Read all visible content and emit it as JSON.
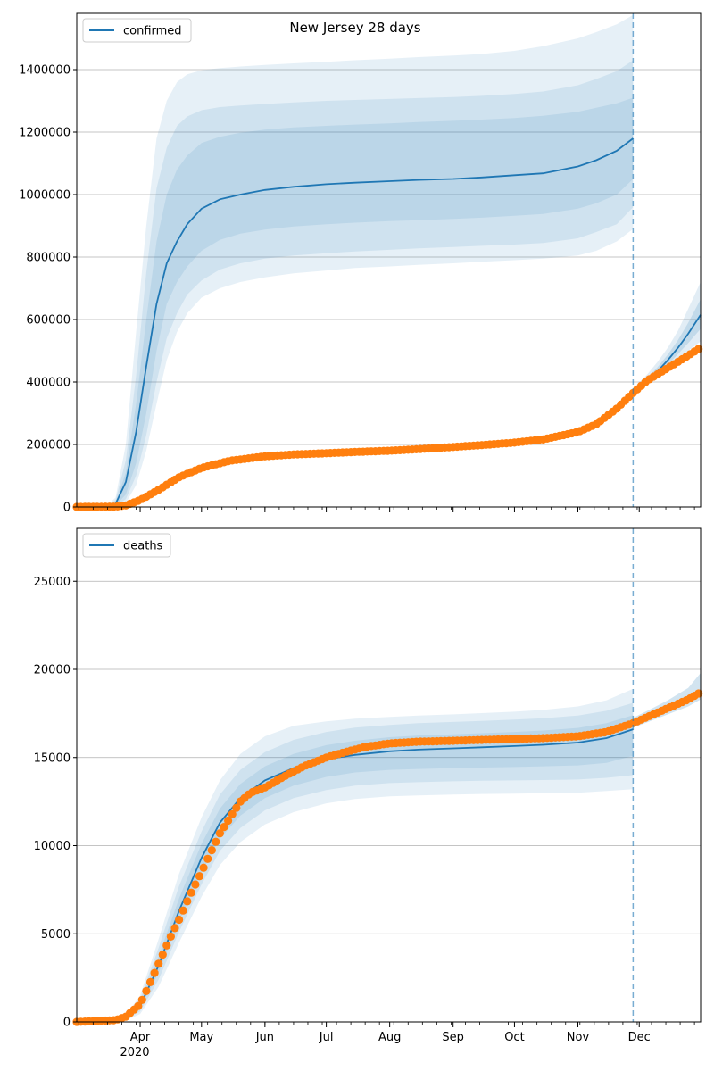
{
  "figure": {
    "title": "New Jersey 28 days",
    "x_tick_labels": [
      "Apr",
      "May",
      "Jun",
      "Jul",
      "Aug",
      "Sep",
      "Oct",
      "Nov",
      "Dec"
    ],
    "x_year_label": "2020",
    "forecast_marker_date": "2020-11-28"
  },
  "colors": {
    "model": "#1f77b4",
    "observed": "#ff7f0e",
    "band": "#1f77b4",
    "grid": "#b0b0b0"
  },
  "chart_data": [
    {
      "type": "line",
      "legend": "confirmed",
      "x_range": [
        "2020-03-01",
        "2020-12-31"
      ],
      "ylim": [
        0,
        1580000
      ],
      "y_ticks": [
        0,
        200000,
        400000,
        600000,
        800000,
        1000000,
        1200000,
        1400000
      ],
      "grid": "y",
      "legend_position": "top-left",
      "model": {
        "name": "confirmed",
        "dates": [
          "2020-03-01",
          "2020-03-15",
          "2020-03-20",
          "2020-03-25",
          "2020-03-30",
          "2020-04-04",
          "2020-04-09",
          "2020-04-14",
          "2020-04-19",
          "2020-04-24",
          "2020-05-01",
          "2020-05-10",
          "2020-05-20",
          "2020-06-01",
          "2020-06-15",
          "2020-07-01",
          "2020-07-15",
          "2020-08-01",
          "2020-08-15",
          "2020-09-01",
          "2020-09-15",
          "2020-10-01",
          "2020-10-15",
          "2020-11-01",
          "2020-11-10",
          "2020-11-20",
          "2020-11-28"
        ],
        "median": [
          0,
          0,
          10000,
          80000,
          240000,
          450000,
          650000,
          780000,
          850000,
          905000,
          955000,
          985000,
          1000000,
          1015000,
          1025000,
          1033000,
          1038000,
          1043000,
          1047000,
          1050000,
          1055000,
          1062000,
          1068000,
          1090000,
          1110000,
          1140000,
          1180000
        ],
        "band_inner_low": [
          0,
          0,
          5000,
          40000,
          140000,
          300000,
          500000,
          650000,
          720000,
          770000,
          820000,
          855000,
          875000,
          888000,
          898000,
          905000,
          910000,
          915000,
          918000,
          922000,
          926000,
          932000,
          938000,
          955000,
          972000,
          1000000,
          1050000
        ],
        "band_inner_high": [
          0,
          0,
          15000,
          110000,
          330000,
          600000,
          850000,
          1000000,
          1080000,
          1125000,
          1165000,
          1185000,
          1198000,
          1208000,
          1215000,
          1220000,
          1224000,
          1228000,
          1232000,
          1236000,
          1240000,
          1245000,
          1252000,
          1265000,
          1278000,
          1292000,
          1310000
        ],
        "band_mid_low": [
          0,
          0,
          2500,
          25000,
          100000,
          230000,
          400000,
          540000,
          620000,
          680000,
          725000,
          760000,
          780000,
          795000,
          805000,
          812000,
          818000,
          823000,
          828000,
          832000,
          836000,
          840000,
          845000,
          860000,
          880000,
          905000,
          960000
        ],
        "band_mid_high": [
          0,
          0,
          22000,
          150000,
          420000,
          750000,
          1020000,
          1150000,
          1220000,
          1250000,
          1270000,
          1280000,
          1285000,
          1290000,
          1295000,
          1300000,
          1303000,
          1306000,
          1309000,
          1312000,
          1316000,
          1322000,
          1330000,
          1350000,
          1370000,
          1395000,
          1430000
        ],
        "band_outer_low": [
          0,
          0,
          1000,
          12000,
          70000,
          180000,
          330000,
          470000,
          560000,
          620000,
          670000,
          700000,
          720000,
          735000,
          748000,
          757000,
          765000,
          770000,
          775000,
          780000,
          785000,
          790000,
          795000,
          805000,
          820000,
          850000,
          890000
        ],
        "band_outer_high": [
          0,
          0,
          30000,
          200000,
          560000,
          900000,
          1180000,
          1300000,
          1360000,
          1385000,
          1398000,
          1405000,
          1410000,
          1415000,
          1420000,
          1425000,
          1430000,
          1435000,
          1440000,
          1445000,
          1450000,
          1460000,
          1475000,
          1500000,
          1520000,
          1545000,
          1575000
        ]
      },
      "projection": {
        "dates": [
          "2020-11-28",
          "2020-12-05",
          "2020-12-10",
          "2020-12-15",
          "2020-12-20",
          "2020-12-25",
          "2020-12-31"
        ],
        "median": [
          365000,
          405000,
          435000,
          470000,
          510000,
          555000,
          615000
        ],
        "band_inner_low": [
          360000,
          398000,
          425000,
          455000,
          490000,
          525000,
          570000
        ],
        "band_inner_high": [
          372000,
          414000,
          448000,
          488000,
          535000,
          590000,
          665000
        ],
        "band_outer_low": [
          355000,
          390000,
          415000,
          440000,
          470000,
          500000,
          530000
        ],
        "band_outer_high": [
          380000,
          425000,
          465000,
          510000,
          565000,
          635000,
          720000
        ]
      },
      "observed": {
        "name": "observed confirmed",
        "dates": [
          "2020-03-01",
          "2020-03-20",
          "2020-03-25",
          "2020-04-01",
          "2020-04-10",
          "2020-04-20",
          "2020-05-01",
          "2020-05-15",
          "2020-06-01",
          "2020-06-15",
          "2020-07-01",
          "2020-07-15",
          "2020-08-01",
          "2020-08-15",
          "2020-09-01",
          "2020-09-15",
          "2020-10-01",
          "2020-10-15",
          "2020-11-01",
          "2020-11-10",
          "2020-11-20",
          "2020-11-28",
          "2020-12-05",
          "2020-12-15",
          "2020-12-25",
          "2020-12-31"
        ],
        "values": [
          0,
          1000,
          5000,
          22000,
          55000,
          95000,
          125000,
          148000,
          162000,
          168000,
          172000,
          176000,
          180000,
          185000,
          192000,
          198000,
          206000,
          216000,
          240000,
          265000,
          315000,
          365000,
          405000,
          445000,
          485000,
          510000
        ]
      }
    },
    {
      "type": "line",
      "legend": "deaths",
      "x_range": [
        "2020-03-01",
        "2020-12-31"
      ],
      "ylim": [
        0,
        28000
      ],
      "y_ticks": [
        0,
        5000,
        10000,
        15000,
        20000,
        25000
      ],
      "grid": "y",
      "legend_position": "top-left",
      "model": {
        "name": "deaths",
        "dates": [
          "2020-03-01",
          "2020-03-20",
          "2020-03-25",
          "2020-04-01",
          "2020-04-10",
          "2020-04-20",
          "2020-05-01",
          "2020-05-10",
          "2020-05-20",
          "2020-06-01",
          "2020-06-15",
          "2020-07-01",
          "2020-07-15",
          "2020-08-01",
          "2020-08-15",
          "2020-09-01",
          "2020-09-15",
          "2020-10-01",
          "2020-10-15",
          "2020-11-01",
          "2020-11-15",
          "2020-11-28"
        ],
        "median": [
          0,
          50,
          200,
          900,
          3200,
          6300,
          9300,
          11300,
          12700,
          13700,
          14400,
          14900,
          15150,
          15350,
          15450,
          15520,
          15580,
          15650,
          15720,
          15850,
          16100,
          16600
        ],
        "band_inner_low": [
          0,
          40,
          150,
          750,
          2800,
          5700,
          8500,
          10400,
          11700,
          12700,
          13400,
          13900,
          14150,
          14300,
          14350,
          14400,
          14430,
          14460,
          14500,
          14550,
          14700,
          15100
        ],
        "band_inner_high": [
          0,
          60,
          260,
          1100,
          3700,
          7000,
          10100,
          12100,
          13500,
          14500,
          15200,
          15700,
          15950,
          16150,
          16250,
          16320,
          16380,
          16450,
          16530,
          16680,
          16950,
          17400
        ],
        "band_mid_low": [
          0,
          30,
          110,
          600,
          2400,
          5100,
          7800,
          9700,
          11000,
          12000,
          12700,
          13150,
          13400,
          13550,
          13600,
          13650,
          13680,
          13700,
          13720,
          13750,
          13850,
          14000
        ],
        "band_mid_high": [
          0,
          70,
          320,
          1300,
          4200,
          7700,
          10800,
          12900,
          14300,
          15300,
          16000,
          16450,
          16700,
          16850,
          16950,
          17020,
          17080,
          17150,
          17230,
          17380,
          17650,
          18100
        ],
        "band_outer_low": [
          0,
          20,
          80,
          450,
          2000,
          4500,
          7100,
          8900,
          10200,
          11200,
          11900,
          12400,
          12650,
          12800,
          12850,
          12900,
          12930,
          12950,
          12970,
          13000,
          13100,
          13200
        ],
        "band_outer_high": [
          0,
          80,
          380,
          1500,
          4700,
          8400,
          11600,
          13700,
          15200,
          16200,
          16800,
          17050,
          17200,
          17300,
          17380,
          17450,
          17520,
          17600,
          17700,
          17900,
          18250,
          18900
        ]
      },
      "projection": {
        "dates": [
          "2020-11-28",
          "2020-12-05",
          "2020-12-15",
          "2020-12-25",
          "2020-12-31"
        ],
        "median": [
          16950,
          17300,
          17800,
          18350,
          18800
        ],
        "band_low": [
          16700,
          17000,
          17450,
          17900,
          18300
        ],
        "band_high": [
          17250,
          17650,
          18250,
          18950,
          19800
        ]
      },
      "observed": {
        "name": "observed deaths",
        "dates": [
          "2020-03-01",
          "2020-03-20",
          "2020-03-25",
          "2020-04-01",
          "2020-04-05",
          "2020-04-10",
          "2020-04-15",
          "2020-04-20",
          "2020-04-25",
          "2020-05-01",
          "2020-05-05",
          "2020-05-10",
          "2020-05-15",
          "2020-05-20",
          "2020-05-25",
          "2020-06-01",
          "2020-06-10",
          "2020-06-20",
          "2020-07-01",
          "2020-07-10",
          "2020-07-20",
          "2020-08-01",
          "2020-08-15",
          "2020-09-01",
          "2020-09-15",
          "2020-10-01",
          "2020-10-15",
          "2020-11-01",
          "2020-11-15",
          "2020-11-28",
          "2020-12-05",
          "2020-12-15",
          "2020-12-25",
          "2020-12-31"
        ],
        "values": [
          0,
          100,
          300,
          1000,
          2000,
          3300,
          4600,
          5800,
          7100,
          8500,
          9500,
          10700,
          11600,
          12500,
          13000,
          13300,
          13900,
          14500,
          15000,
          15300,
          15600,
          15800,
          15900,
          15950,
          16000,
          16050,
          16100,
          16200,
          16450,
          16950,
          17300,
          17800,
          18300,
          18700
        ]
      }
    }
  ]
}
